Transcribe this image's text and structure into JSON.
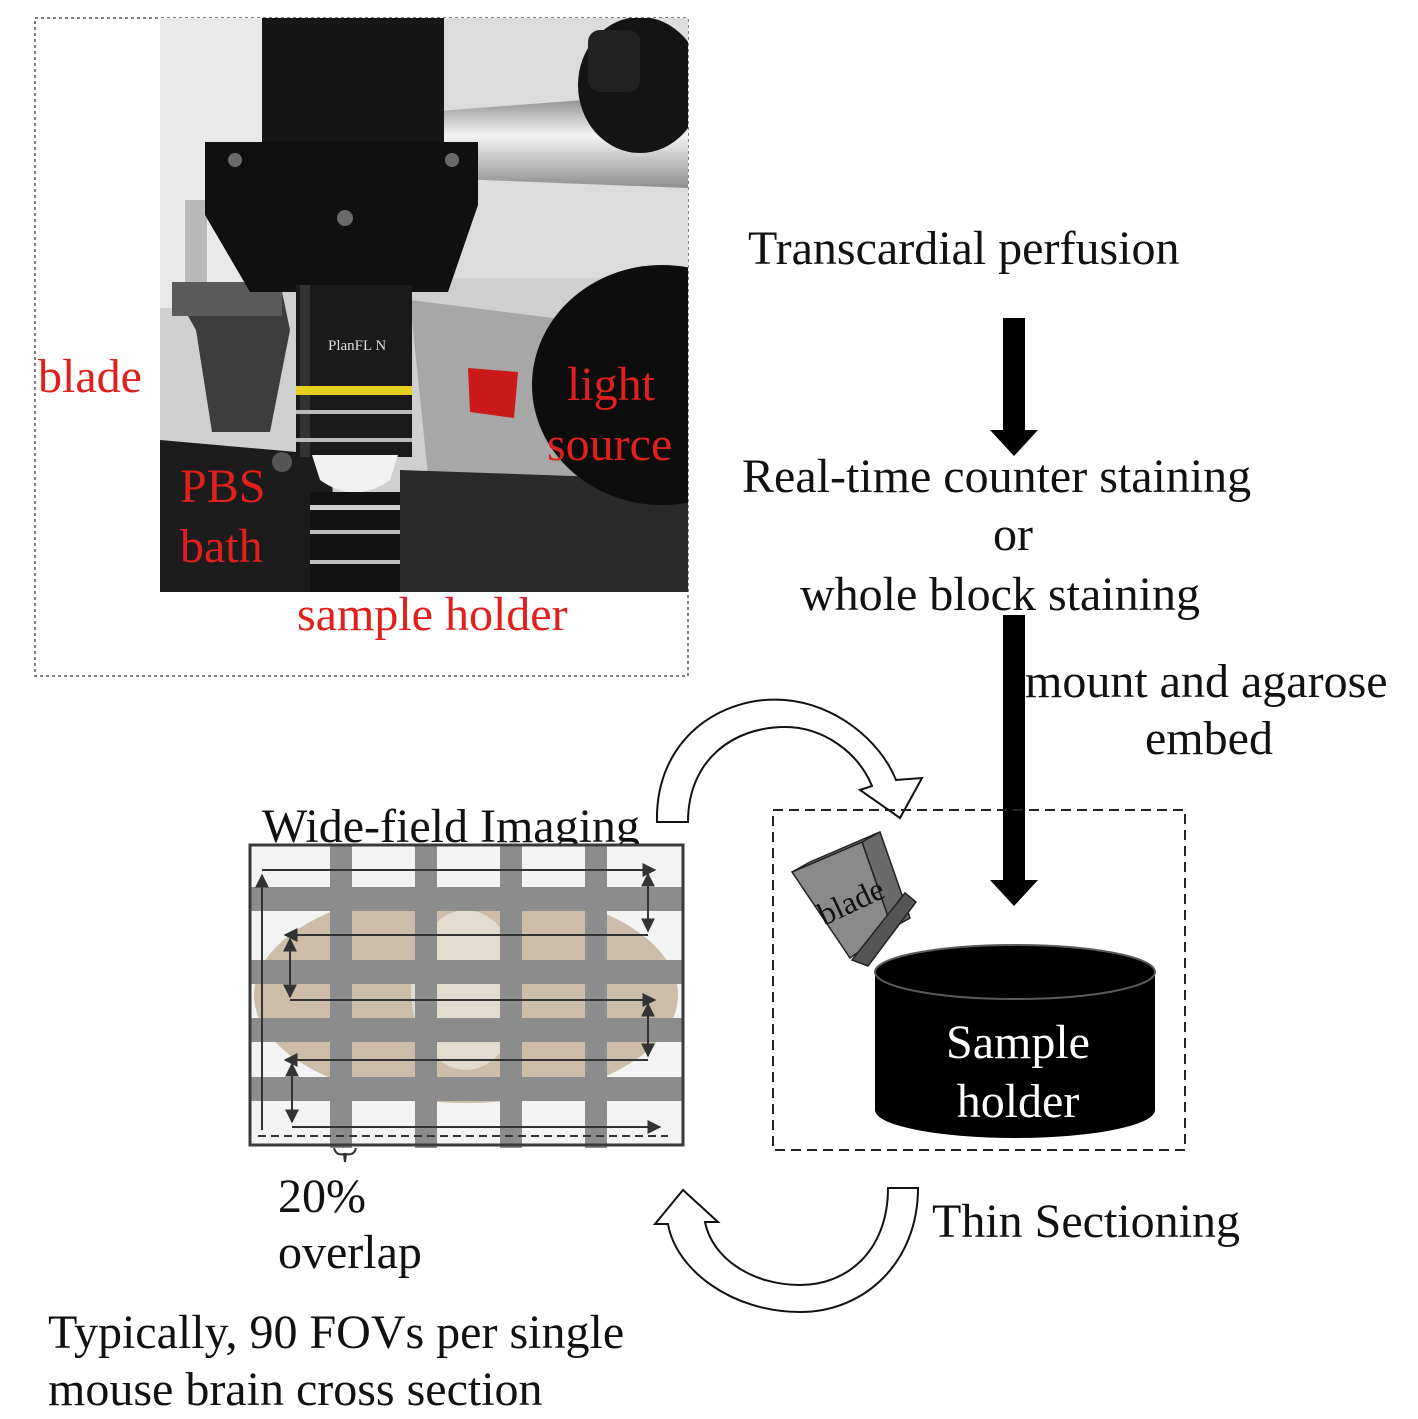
{
  "photo": {
    "objective_text": "PlanFL N",
    "labels": {
      "blade": "blade",
      "pbs": "PBS",
      "bath": "bath",
      "light": "light",
      "source": "source",
      "sample_holder": "sample holder"
    }
  },
  "workflow": {
    "perfusion": "Transcardial perfusion",
    "staining_line1": "Real-time counter staining",
    "staining_or": "or",
    "staining_line2": "whole block staining",
    "mount_line1": "mount and agarose",
    "mount_line2": "embed"
  },
  "imaging": {
    "title": "Wide-field Imaging",
    "overlap_line1": "20%",
    "overlap_line2": "overlap",
    "note_line1": "Typically, 90 FOVs per single",
    "note_line2": "mouse brain cross section"
  },
  "sectioning": {
    "blade_label": "blade",
    "holder_line1": "Sample",
    "holder_line2": "holder",
    "label": "Thin Sectioning"
  },
  "colors": {
    "photo_label": "#e0201c",
    "arrow": "#000000",
    "grid_bar": "#8c8c8c",
    "holder": "#000000"
  }
}
